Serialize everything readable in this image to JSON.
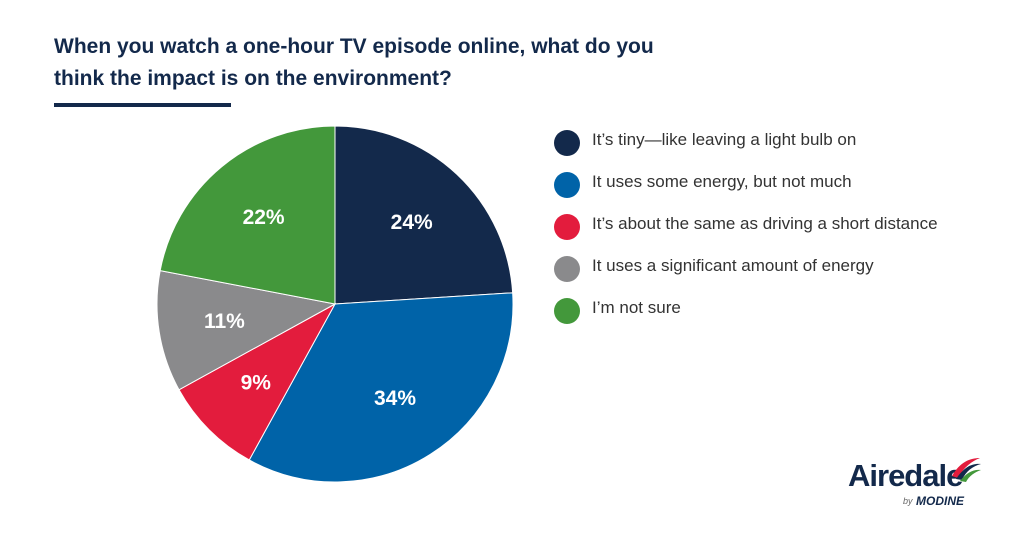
{
  "title_lines": [
    "When you watch a one-hour TV episode online, what do you",
    "think the impact is on the environment?"
  ],
  "chart_data": {
    "type": "pie",
    "title": "When you watch a one-hour TV episode online, what do you think the impact is on the environment?",
    "categories": [
      "It’s tiny—like leaving a light bulb on",
      "It uses some energy, but not much",
      "It’s about the same as driving a short distance",
      "It uses a significant amount of energy",
      "I’m not sure"
    ],
    "values": [
      24,
      34,
      9,
      11,
      22
    ],
    "value_labels": [
      "24%",
      "34%",
      "9%",
      "11%",
      "22%"
    ],
    "colors": [
      "#13294b",
      "#0063a8",
      "#e31c3d",
      "#8a8a8c",
      "#43983b"
    ],
    "start": "12 o'clock",
    "direction": "clockwise",
    "legend_position": "right"
  },
  "brand": {
    "name": "Airedale",
    "by": "by",
    "parent": "MODINE",
    "logo_icon": "airedale-swoosh-icon"
  }
}
